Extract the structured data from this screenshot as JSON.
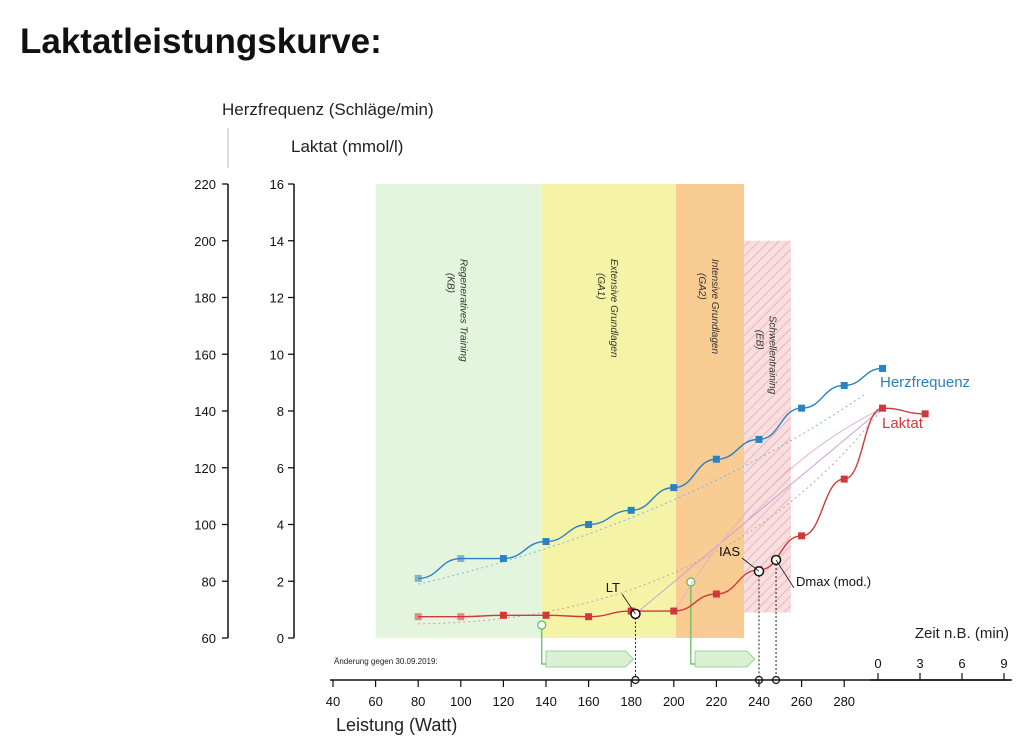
{
  "page": {
    "title": "Laktatleistungskurve:"
  },
  "chart_data": {
    "type": "line",
    "title": "Laktatleistungskurve:",
    "xlabel": "Leistung (Watt)",
    "xticks": [
      40,
      60,
      80,
      100,
      120,
      140,
      160,
      180,
      200,
      220,
      240,
      260,
      280
    ],
    "xlim": [
      40,
      320
    ],
    "time_axis": {
      "label": "Zeit n.B. (min)",
      "ticks": [
        "0",
        "3",
        "6",
        "9"
      ]
    },
    "y_axes": [
      {
        "label": "Herzfrequenz (Schläge/min)",
        "ylim": [
          60,
          220
        ],
        "ticks": [
          60,
          80,
          100,
          120,
          140,
          160,
          180,
          200,
          220
        ]
      },
      {
        "label": "Laktat (mmol/l)",
        "ylim": [
          0,
          16
        ],
        "ticks": [
          0,
          2,
          4,
          6,
          8,
          10,
          12,
          14,
          16
        ]
      }
    ],
    "series": [
      {
        "name": "Herzfrequenz",
        "axis": "hr",
        "color": "#2b82c0",
        "points": [
          [
            80,
            81
          ],
          [
            100,
            88
          ],
          [
            120,
            88
          ],
          [
            140,
            94
          ],
          [
            160,
            100
          ],
          [
            180,
            105
          ],
          [
            200,
            113
          ],
          [
            220,
            123
          ],
          [
            240,
            130
          ],
          [
            260,
            141
          ],
          [
            280,
            149
          ],
          [
            298,
            155
          ]
        ]
      },
      {
        "name": "Laktat",
        "axis": "lactate",
        "color": "#d0393b",
        "points": [
          [
            80,
            0.75
          ],
          [
            100,
            0.75
          ],
          [
            120,
            0.8
          ],
          [
            140,
            0.8
          ],
          [
            160,
            0.75
          ],
          [
            180,
            0.95
          ],
          [
            200,
            0.95
          ],
          [
            220,
            1.55
          ],
          [
            240,
            2.4
          ],
          [
            260,
            3.6
          ],
          [
            280,
            5.6
          ],
          [
            298,
            8.1
          ],
          [
            318,
            7.9
          ]
        ]
      }
    ],
    "zones": [
      {
        "label": "Regeneratives Training",
        "abbr": "(KB)",
        "from": 60,
        "to": 138,
        "top": 16,
        "color": "#e3f4dc"
      },
      {
        "label": "Extensive Grundlagen",
        "abbr": "(GA1)",
        "from": 138,
        "to": 201,
        "top": 16,
        "color": "#f4f3a1"
      },
      {
        "label": "Intensive Grundlagen",
        "abbr": "(GA2)",
        "from": 201,
        "to": 233,
        "top": 16,
        "color": "#f8c98c"
      },
      {
        "label": "Schwellentraining",
        "abbr": "(EB)",
        "from": 233,
        "to": 255,
        "top": 14,
        "color": "#f8dada"
      }
    ],
    "thresholds": [
      {
        "label": "LT",
        "watt": 182,
        "lactate": 0.85
      },
      {
        "label": "IAS",
        "watt": 240,
        "lactate": 2.35
      },
      {
        "label": "Dmax (mod.)",
        "watt": 248,
        "lactate": 2.75
      }
    ],
    "note": "Änderung gegen 30.09.2019:",
    "grid": false,
    "legend": "inline-right"
  }
}
